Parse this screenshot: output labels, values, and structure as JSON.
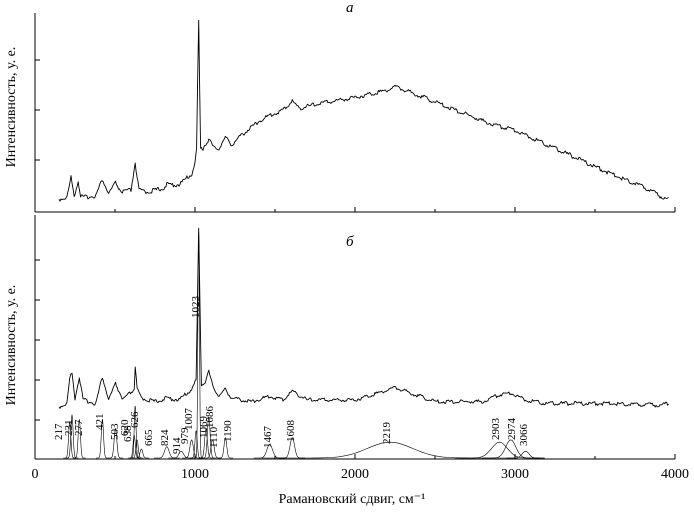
{
  "chart_data": [
    {
      "type": "line",
      "panel_label": "а",
      "ylabel": "Интенсивность, у. е.",
      "xlim": [
        0,
        4000
      ],
      "x_ticks": [
        0,
        1000,
        2000,
        3000,
        4000
      ],
      "series": [
        {
          "values_note": "",
          "x": [
            150,
            200,
            225,
            245,
            270,
            285,
            300,
            380,
            421,
            460,
            503,
            540,
            600,
            626,
            650,
            700,
            800,
            824,
            900,
            980,
            1000,
            1010,
            1023,
            1035,
            1050,
            1086,
            1120,
            1150,
            1190,
            1230,
            1300,
            1400,
            1467,
            1550,
            1608,
            1650,
            1800,
            2000,
            2200,
            2250,
            2400,
            2600,
            2800,
            2903,
            2974,
            3050,
            3200,
            3400,
            3600,
            3800,
            3900,
            3960
          ],
          "y": [
            0.02,
            0.03,
            0.14,
            0.04,
            0.12,
            0.04,
            0.03,
            0.04,
            0.13,
            0.05,
            0.11,
            0.06,
            0.07,
            0.22,
            0.07,
            0.06,
            0.08,
            0.1,
            0.1,
            0.16,
            0.22,
            0.3,
            1.0,
            0.3,
            0.3,
            0.35,
            0.3,
            0.3,
            0.36,
            0.32,
            0.38,
            0.45,
            0.48,
            0.51,
            0.56,
            0.52,
            0.55,
            0.58,
            0.62,
            0.64,
            0.59,
            0.52,
            0.45,
            0.42,
            0.41,
            0.38,
            0.32,
            0.24,
            0.16,
            0.09,
            0.04,
            0.02
          ]
        }
      ]
    },
    {
      "type": "line",
      "panel_label": "б",
      "ylabel": "Интенсивность, у. е.",
      "xlabel": "Рамановский сдвиг, см⁻¹",
      "xlim": [
        0,
        4000
      ],
      "x_ticks": [
        0,
        1000,
        2000,
        3000,
        4000
      ],
      "series": [
        {
          "x": [
            150,
            200,
            217,
            231,
            250,
            277,
            300,
            380,
            421,
            460,
            503,
            550,
            620,
            626,
            638,
            665,
            750,
            824,
            900,
            979,
            1007,
            1023,
            1040,
            1069,
            1086,
            1110,
            1150,
            1190,
            1230,
            1350,
            1467,
            1550,
            1608,
            1700,
            2000,
            2219,
            2250,
            2500,
            2800,
            2903,
            2974,
            3066,
            3200,
            3600,
            3900,
            3960
          ],
          "y": [
            0.0,
            0.02,
            0.16,
            0.19,
            0.05,
            0.17,
            0.04,
            0.02,
            0.17,
            0.04,
            0.13,
            0.04,
            0.1,
            0.23,
            0.1,
            0.05,
            0.03,
            0.05,
            0.04,
            0.1,
            0.15,
            1.0,
            0.12,
            0.15,
            0.2,
            0.12,
            0.06,
            0.1,
            0.05,
            0.03,
            0.06,
            0.04,
            0.09,
            0.04,
            0.04,
            0.1,
            0.11,
            0.03,
            0.03,
            0.07,
            0.08,
            0.04,
            0.02,
            0.02,
            0.01,
            0.02
          ]
        }
      ],
      "peaks": [
        {
          "x": 217,
          "label": "217",
          "h": 0.16,
          "w": 10
        },
        {
          "x": 231,
          "label": "231",
          "h": 0.19,
          "w": 10
        },
        {
          "x": 277,
          "label": "277",
          "h": 0.17,
          "w": 10
        },
        {
          "x": 421,
          "label": "421",
          "h": 0.17,
          "w": 10
        },
        {
          "x": 503,
          "label": "503",
          "h": 0.13,
          "w": 12
        },
        {
          "x": 620,
          "label": "620",
          "h": 0.1,
          "w": 10
        },
        {
          "x": 626,
          "label": "626",
          "h": 0.23,
          "w": 8
        },
        {
          "x": 638,
          "label": "638",
          "h": 0.08,
          "w": 10
        },
        {
          "x": 665,
          "label": "665",
          "h": 0.04,
          "w": 12
        },
        {
          "x": 824,
          "label": "824",
          "h": 0.05,
          "w": 20
        },
        {
          "x": 914,
          "label": "914",
          "h": 0.03,
          "w": 20
        },
        {
          "x": 979,
          "label": "979",
          "h": 0.08,
          "w": 15
        },
        {
          "x": 1007,
          "label": "1007",
          "h": 0.12,
          "w": 10
        },
        {
          "x": 1023,
          "label": "1023",
          "h": 1.0,
          "w": 7
        },
        {
          "x": 1069,
          "label": "1069",
          "h": 0.13,
          "w": 12
        },
        {
          "x": 1086,
          "label": "1086",
          "h": 0.18,
          "w": 12
        },
        {
          "x": 1110,
          "label": "1110",
          "h": 0.08,
          "w": 14
        },
        {
          "x": 1190,
          "label": "1190",
          "h": 0.09,
          "w": 12
        },
        {
          "x": 1467,
          "label": "1467",
          "h": 0.06,
          "w": 25
        },
        {
          "x": 1608,
          "label": "1608",
          "h": 0.09,
          "w": 20
        },
        {
          "x": 2219,
          "label": "2219",
          "h": 0.07,
          "w": 200
        },
        {
          "x": 2903,
          "label": "2903",
          "h": 0.07,
          "w": 70
        },
        {
          "x": 2974,
          "label": "2974",
          "h": 0.08,
          "w": 45
        },
        {
          "x": 3066,
          "label": "3066",
          "h": 0.03,
          "w": 30
        }
      ]
    }
  ]
}
